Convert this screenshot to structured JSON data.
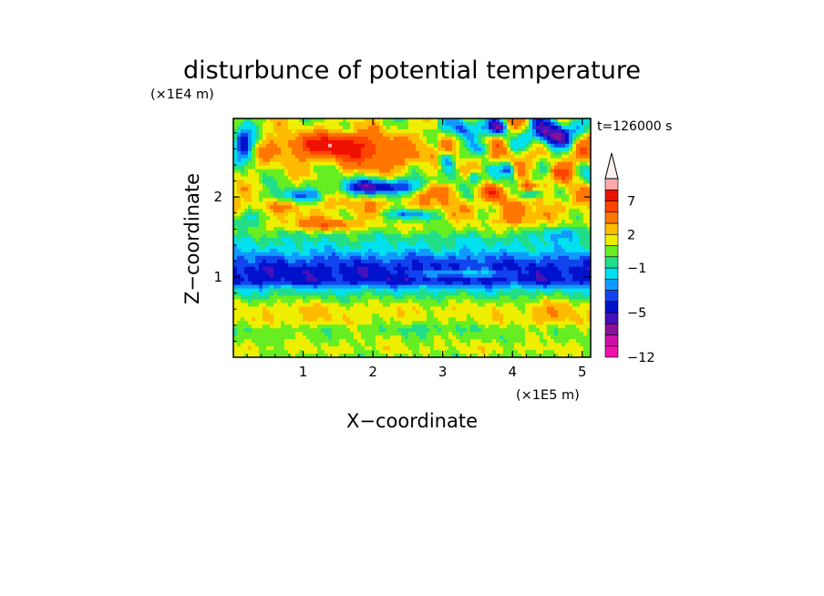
{
  "chart_data": {
    "type": "heatmap",
    "title": "disturbunce of potential temperature",
    "time_label": "t=126000 s",
    "xlabel": "X−coordinate",
    "ylabel": "Z−coordinate",
    "x_scale_label": "(×1E5 m)",
    "y_scale_label": "(×1E4 m)",
    "xlim": [
      0,
      5.12
    ],
    "ylim": [
      0,
      2.98
    ],
    "x_ticks": [
      "1",
      "2",
      "3",
      "4",
      "5"
    ],
    "y_ticks": [
      "1",
      "2"
    ],
    "colorbar": {
      "levels": [
        -12,
        -10,
        -8,
        -6,
        -5,
        -4,
        -3,
        -2,
        -1,
        0,
        1,
        2,
        3,
        5,
        7,
        9,
        11
      ],
      "colors": [
        "#ee11aa",
        "#cc11aa",
        "#881199",
        "#4411bb",
        "#0011cc",
        "#1144ee",
        "#1199ff",
        "#00e0ee",
        "#22dd88",
        "#66ee22",
        "#eeee00",
        "#ffbb00",
        "#ff7700",
        "#ff4400",
        "#ee1100",
        "#ffaaaa"
      ],
      "tick_labels": [
        "−12",
        "−5",
        "−1",
        "2",
        "7"
      ],
      "tick_values": [
        -12,
        -5,
        -1,
        2,
        7
      ],
      "extend_arrow_color": "#fff0f0"
    },
    "band_pattern": [
      {
        "z": 0.0,
        "value": 0.5
      },
      {
        "z": 0.1,
        "value": 1.4
      },
      {
        "z": 0.2,
        "value": 0.9
      },
      {
        "z": 0.35,
        "value": 0.3
      },
      {
        "z": 0.45,
        "value": 1.5
      },
      {
        "z": 0.6,
        "value": 1.6
      },
      {
        "z": 0.72,
        "value": 0.4
      },
      {
        "z": 0.85,
        "value": -1.5
      },
      {
        "z": 0.95,
        "value": -4.6
      },
      {
        "z": 1.1,
        "value": -4.6
      },
      {
        "z": 1.22,
        "value": -3.2
      },
      {
        "z": 1.35,
        "value": -1.5
      },
      {
        "z": 1.48,
        "value": -0.7
      },
      {
        "z": 1.6,
        "value": 0.8
      },
      {
        "z": 1.75,
        "value": 1.6
      },
      {
        "z": 1.9,
        "value": 2.5
      },
      {
        "z": 2.05,
        "value": 1.8
      },
      {
        "z": 2.2,
        "value": 0.9
      },
      {
        "z": 2.35,
        "value": 1.4
      },
      {
        "z": 2.55,
        "value": 2.6
      },
      {
        "z": 2.75,
        "value": 1.8
      },
      {
        "z": 2.98,
        "value": 1.2
      }
    ],
    "anomalies": [
      {
        "x": 1.5,
        "z": 2.65,
        "amp": 6.5,
        "sx": 0.45,
        "sz": 0.1
      },
      {
        "x": 2.05,
        "z": 2.45,
        "amp": 2.5,
        "sx": 0.35,
        "sz": 0.1
      },
      {
        "x": 2.1,
        "z": 2.12,
        "amp": -7.0,
        "sx": 0.42,
        "sz": 0.07
      },
      {
        "x": 0.9,
        "z": 2.02,
        "amp": -4.5,
        "sx": 0.3,
        "sz": 0.06
      },
      {
        "x": 2.5,
        "z": 1.78,
        "amp": -4.5,
        "sx": 0.25,
        "sz": 0.05
      },
      {
        "x": 1.3,
        "z": 1.66,
        "amp": 3.5,
        "sx": 0.35,
        "sz": 0.05
      },
      {
        "x": 0.15,
        "z": 2.65,
        "amp": -7.0,
        "sx": 0.12,
        "sz": 0.15
      },
      {
        "x": 3.3,
        "z": 2.85,
        "amp": -6.5,
        "sx": 0.15,
        "sz": 0.1
      },
      {
        "x": 3.05,
        "z": 2.48,
        "amp": -5.0,
        "sx": 0.08,
        "sz": 0.08
      },
      {
        "x": 3.6,
        "z": 2.6,
        "amp": -5.0,
        "sx": 0.09,
        "sz": 0.07
      },
      {
        "x": 3.8,
        "z": 2.86,
        "amp": -6.0,
        "sx": 0.1,
        "sz": 0.07
      },
      {
        "x": 4.55,
        "z": 2.78,
        "amp": -9.5,
        "sx": 0.2,
        "sz": 0.12
      },
      {
        "x": 3.95,
        "z": 2.35,
        "amp": -5.0,
        "sx": 0.07,
        "sz": 0.06
      },
      {
        "x": 4.3,
        "z": 2.05,
        "amp": -5.0,
        "sx": 0.1,
        "sz": 0.05
      },
      {
        "x": 3.45,
        "z": 2.25,
        "amp": -4.5,
        "sx": 0.08,
        "sz": 0.06
      },
      {
        "x": 2.9,
        "z": 2.1,
        "amp": 3.5,
        "sx": 0.12,
        "sz": 0.06
      },
      {
        "x": 3.7,
        "z": 2.05,
        "amp": 3.0,
        "sx": 0.12,
        "sz": 0.06
      },
      {
        "x": 4.2,
        "z": 2.12,
        "amp": 5.0,
        "sx": 0.1,
        "sz": 0.05
      },
      {
        "x": 4.7,
        "z": 2.3,
        "amp": 3.5,
        "sx": 0.12,
        "sz": 0.08
      },
      {
        "x": 4.05,
        "z": 1.72,
        "amp": 3.0,
        "sx": 0.15,
        "sz": 0.06
      },
      {
        "x": 4.75,
        "z": 1.55,
        "amp": -2.5,
        "sx": 0.25,
        "sz": 0.06
      },
      {
        "x": 0.15,
        "z": 1.7,
        "amp": -2.0,
        "sx": 0.2,
        "sz": 0.08
      },
      {
        "x": 3.3,
        "z": 1.05,
        "amp": 2.8,
        "sx": 0.5,
        "sz": 0.04
      },
      {
        "x": 4.6,
        "z": 0.55,
        "amp": 1.2,
        "sx": 0.25,
        "sz": 0.15
      },
      {
        "x": 1.0,
        "z": 0.55,
        "amp": 0.8,
        "sx": 0.3,
        "sz": 0.1
      },
      {
        "x": 2.8,
        "z": 0.4,
        "amp": -0.9,
        "sx": 0.3,
        "sz": 0.08
      }
    ]
  }
}
